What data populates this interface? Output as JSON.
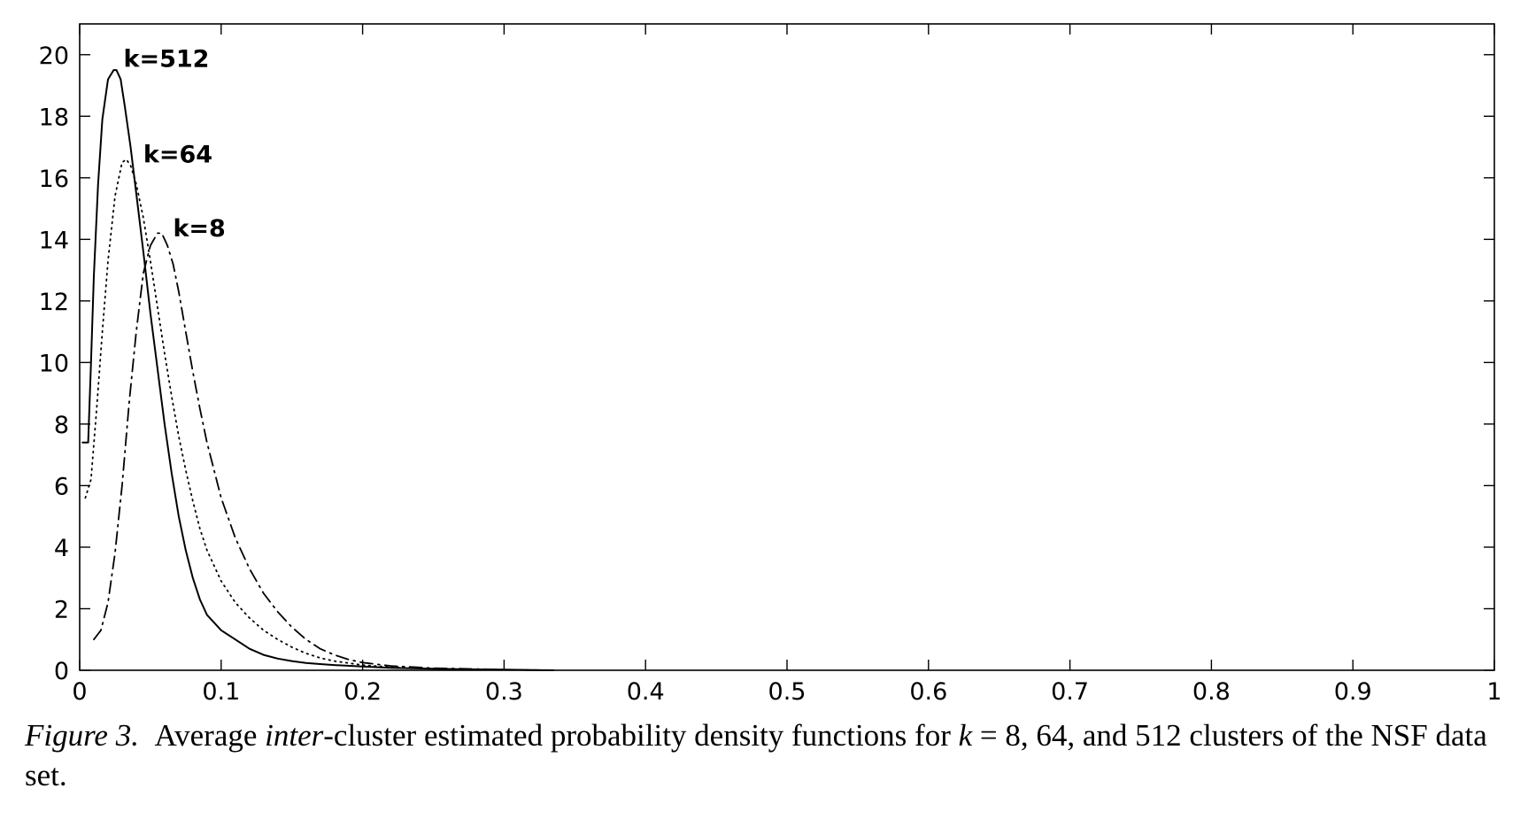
{
  "chart_data": {
    "type": "line",
    "xlim": [
      0,
      1
    ],
    "ylim": [
      0,
      21
    ],
    "x_ticks": [
      0,
      0.1,
      0.2,
      0.3,
      0.4,
      0.5,
      0.6,
      0.7,
      0.8,
      0.9,
      1
    ],
    "x_tick_labels": [
      "0",
      "0.1",
      "0.2",
      "0.3",
      "0.4",
      "0.5",
      "0.6",
      "0.7",
      "0.8",
      "0.9",
      "1"
    ],
    "y_ticks": [
      0,
      2,
      4,
      6,
      8,
      10,
      12,
      14,
      16,
      18,
      20
    ],
    "y_tick_labels": [
      "0",
      "2",
      "4",
      "6",
      "8",
      "10",
      "12",
      "14",
      "16",
      "18",
      "20"
    ],
    "grid": false,
    "series": [
      {
        "name": "k=512",
        "line_style": "solid",
        "color": "#000000",
        "x": [
          0.002,
          0.004,
          0.006,
          0.008,
          0.01,
          0.013,
          0.016,
          0.02,
          0.024,
          0.026,
          0.029,
          0.032,
          0.036,
          0.04,
          0.045,
          0.05,
          0.055,
          0.06,
          0.065,
          0.07,
          0.075,
          0.08,
          0.085,
          0.09,
          0.1,
          0.11,
          0.12,
          0.13,
          0.14,
          0.15,
          0.16,
          0.17,
          0.18,
          0.2,
          0.22,
          0.25,
          0.28,
          0.3,
          0.32,
          0.335
        ],
        "y": [
          7.4,
          7.4,
          7.4,
          10.0,
          12.8,
          15.8,
          17.9,
          19.2,
          19.5,
          19.5,
          19.2,
          18.3,
          17.0,
          15.5,
          13.6,
          11.6,
          9.8,
          8.0,
          6.4,
          5.0,
          3.9,
          3.0,
          2.3,
          1.8,
          1.3,
          1.0,
          0.7,
          0.5,
          0.38,
          0.3,
          0.24,
          0.2,
          0.17,
          0.12,
          0.08,
          0.05,
          0.03,
          0.02,
          0.01,
          0.0
        ]
      },
      {
        "name": "k=64",
        "line_style": "dotted",
        "color": "#000000",
        "x": [
          0.004,
          0.008,
          0.012,
          0.016,
          0.02,
          0.025,
          0.03,
          0.033,
          0.036,
          0.04,
          0.045,
          0.05,
          0.055,
          0.06,
          0.065,
          0.07,
          0.075,
          0.08,
          0.085,
          0.09,
          0.1,
          0.11,
          0.12,
          0.13,
          0.14,
          0.15,
          0.16,
          0.17,
          0.18,
          0.2,
          0.22,
          0.25,
          0.28,
          0.3,
          0.33
        ],
        "y": [
          5.6,
          6.2,
          8.5,
          11.0,
          13.3,
          15.4,
          16.5,
          16.6,
          16.4,
          15.8,
          14.7,
          13.3,
          11.8,
          10.3,
          8.9,
          7.6,
          6.5,
          5.5,
          4.6,
          3.9,
          2.9,
          2.2,
          1.7,
          1.3,
          1.0,
          0.75,
          0.55,
          0.4,
          0.3,
          0.17,
          0.1,
          0.05,
          0.03,
          0.02,
          0.0
        ]
      },
      {
        "name": "k=8",
        "line_style": "dash-dot",
        "color": "#000000",
        "x": [
          0.01,
          0.015,
          0.02,
          0.025,
          0.03,
          0.035,
          0.04,
          0.045,
          0.05,
          0.055,
          0.058,
          0.062,
          0.066,
          0.07,
          0.075,
          0.08,
          0.085,
          0.09,
          0.095,
          0.1,
          0.11,
          0.12,
          0.13,
          0.14,
          0.15,
          0.16,
          0.17,
          0.18,
          0.19,
          0.2,
          0.22,
          0.25,
          0.28,
          0.3,
          0.33
        ],
        "y": [
          1.0,
          1.3,
          2.2,
          3.8,
          6.0,
          8.7,
          11.0,
          12.9,
          13.8,
          14.2,
          14.2,
          13.8,
          13.2,
          12.3,
          11.0,
          9.7,
          8.5,
          7.4,
          6.5,
          5.6,
          4.3,
          3.3,
          2.5,
          1.9,
          1.4,
          1.0,
          0.7,
          0.5,
          0.35,
          0.25,
          0.14,
          0.07,
          0.04,
          0.02,
          0.0
        ]
      }
    ],
    "annotations": [
      {
        "text": "k=512",
        "x": 0.031,
        "y": 19.6
      },
      {
        "text": "k=64",
        "x": 0.045,
        "y": 16.5
      },
      {
        "text": "k=8",
        "x": 0.066,
        "y": 14.1
      }
    ]
  },
  "caption": {
    "label": "Figure 3.",
    "text_1": "Average",
    "text_em": "inter",
    "text_2": "-cluster estimated probability density functions for",
    "math_var": "k",
    "text_3": "= 8, 64, and 512 clusters of the NSF data set."
  }
}
